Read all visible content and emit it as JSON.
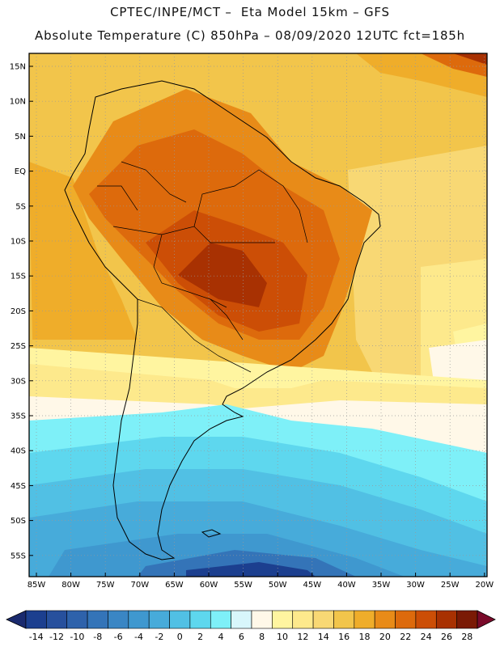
{
  "title_line1": "CPTEC/INPE/MCT –  Eta Model 15km – GFS",
  "title_line2": "Absolute Temperature (C) 850hPa – 08/09/2020 12UTC fct=185h",
  "lat_labels": [
    "15N",
    "10N",
    "5N",
    "EQ",
    "5S",
    "10S",
    "15S",
    "20S",
    "25S",
    "30S",
    "35S",
    "40S",
    "45S",
    "50S",
    "55S"
  ],
  "lon_labels": [
    "85W",
    "80W",
    "75W",
    "70W",
    "65W",
    "60W",
    "55W",
    "50W",
    "45W",
    "40W",
    "35W",
    "30W",
    "25W",
    "20W"
  ],
  "colorbar": {
    "tick_labels": [
      "-14",
      "-12",
      "-10",
      "-8",
      "-6",
      "-4",
      "-2",
      "0",
      "2",
      "4",
      "6",
      "8",
      "10",
      "12",
      "14",
      "16",
      "18",
      "20",
      "22",
      "24",
      "26",
      "28"
    ],
    "colors": [
      "#1c3f8f",
      "#27509d",
      "#2e62ab",
      "#3474b8",
      "#3a86c4",
      "#3f98cf",
      "#47abda",
      "#51c0e4",
      "#5ed7ee",
      "#7ef0f8",
      "#d8f6fb",
      "#fff8e8",
      "#fff5a0",
      "#fde98c",
      "#f8d874",
      "#f2c54b",
      "#efad2a",
      "#e88b18",
      "#dd6a0c",
      "#cc4e06",
      "#a83102",
      "#7a1a05"
    ]
  }
}
